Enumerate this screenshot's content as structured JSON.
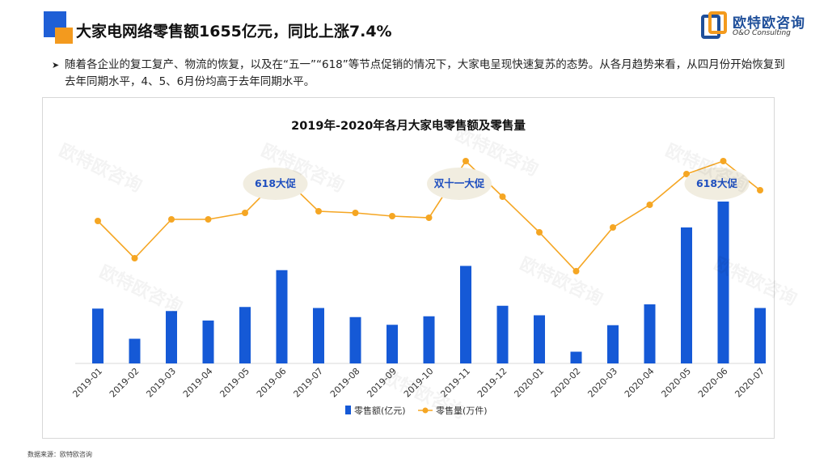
{
  "header": {
    "title": "大家电网络零售额1655亿元，同比上涨7.4%"
  },
  "brand": {
    "name_cn": "欧特欧咨询",
    "name_en": "O&O Consulting"
  },
  "bullet": {
    "text": "随着各企业的复工复产、物流的恢复，以及在“五一”“618”等节点促销的情况下，大家电呈现快速复苏的态势。从各月趋势来看，从四月份开始恢复到去年同期水平，4、5、6月份均高于去年同期水平。"
  },
  "source": "数据来源：欧特欧咨询",
  "watermark": "欧特欧咨询",
  "colors": {
    "bar": "#1559d6",
    "line": "#f5a623",
    "bubble": "#f1ede0",
    "bubble_text": "#1f4fbf"
  },
  "chart_data": {
    "type": "bar",
    "title": "2019年-2020年各月大家电零售额及零售量",
    "categories": [
      "2019-01",
      "2019-02",
      "2019-03",
      "2019-04",
      "2019-05",
      "2019-06",
      "2019-07",
      "2019-08",
      "2019-09",
      "2019-10",
      "2019-11",
      "2019-12",
      "2020-01",
      "2020-02",
      "2020-03",
      "2020-04",
      "2020-05",
      "2020-06",
      "2020-07"
    ],
    "series": [
      {
        "name": "零售额(亿元)",
        "type": "bar",
        "values": [
          271,
          122,
          259,
          212,
          279,
          461,
          274,
          229,
          191,
          233,
          482,
          285,
          238,
          58,
          189,
          292,
          672,
          800,
          274
        ]
      },
      {
        "name": "零售量(万件)",
        "type": "line",
        "values": [
          320,
          205,
          325,
          325,
          345,
          460,
          350,
          345,
          335,
          330,
          505,
          395,
          285,
          165,
          300,
          370,
          465,
          505,
          415
        ]
      }
    ],
    "annotations": [
      {
        "text": "618大促",
        "at": "2019-06"
      },
      {
        "text": "双十一大促",
        "at": "2019-11"
      },
      {
        "text": "618大促",
        "at": "2020-06"
      }
    ],
    "legend": "bottom",
    "grid": false
  }
}
